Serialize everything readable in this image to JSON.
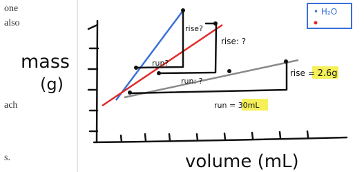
{
  "left_text": [
    "one",
    "also",
    "ach",
    "s."
  ],
  "y_label": [
    "mass",
    "(g)"
  ],
  "x_label": "volume (mL)",
  "legend": "• H₂O",
  "annotations": {
    "rise_1": "rise?",
    "rise_2": "rise: ?",
    "run_1": "run?",
    "run_2": "run: ?",
    "rise_3": {
      "text": "rise =",
      "highlight": "2.6g"
    },
    "run_3": {
      "text": "run =",
      "highlight": "30mL"
    }
  }
}
